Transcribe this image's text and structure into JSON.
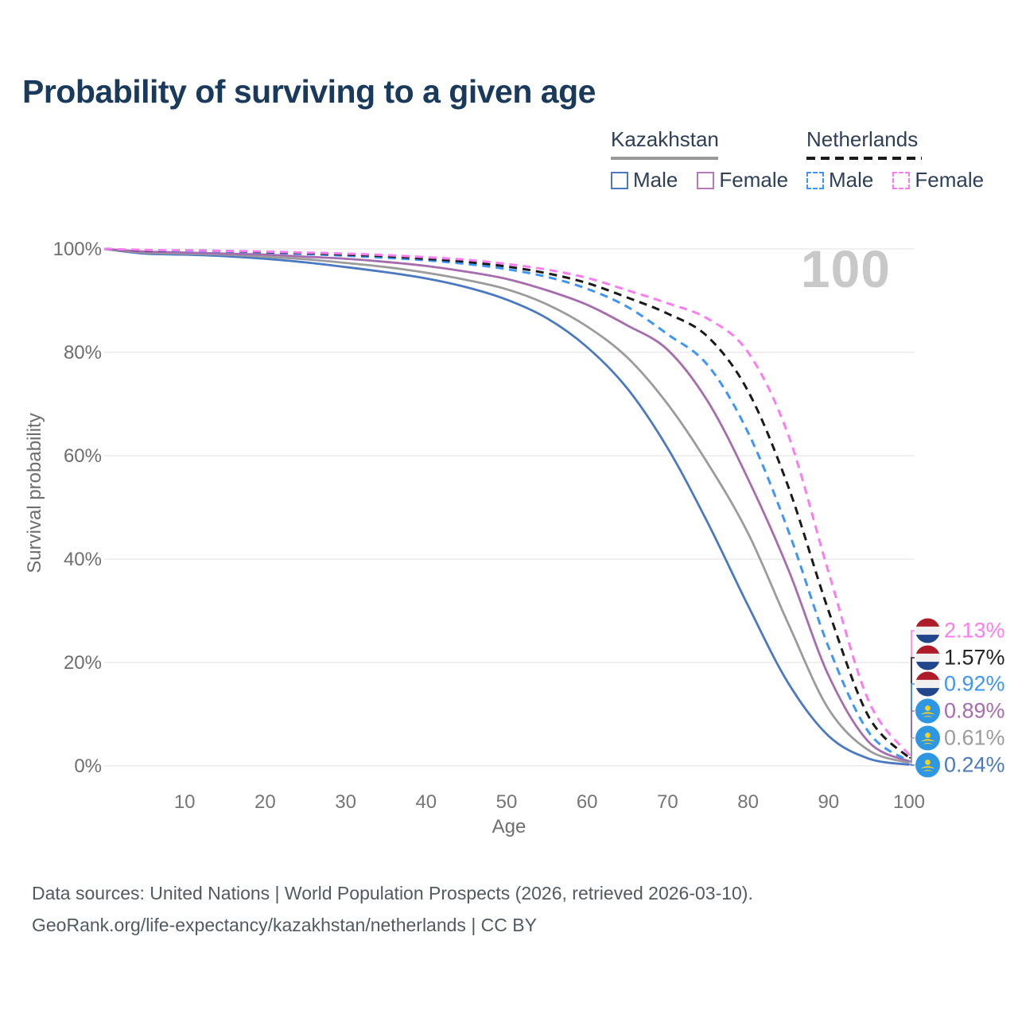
{
  "header": {
    "title": "Probability of surviving to a given age"
  },
  "watermark": {
    "text": "100"
  },
  "legend": {
    "groups": [
      {
        "id": "kazakhstan",
        "label": "Kazakhstan",
        "underline_style": "solid",
        "underline_color": "#9a9a9a",
        "items": [
          {
            "id": "kz-male",
            "label": "Male",
            "color": "#4a79c2",
            "dash": false
          },
          {
            "id": "kz-female",
            "label": "Female",
            "color": "#b77ab8",
            "dash": false
          }
        ]
      },
      {
        "id": "netherlands",
        "label": "Netherlands",
        "underline_style": "dashed",
        "underline_color": "#1a1a1a",
        "items": [
          {
            "id": "nl-male",
            "label": "Male",
            "color": "#3d96f7",
            "dash": true
          },
          {
            "id": "nl-female",
            "label": "Female",
            "color": "#fb7cf0",
            "dash": true
          }
        ]
      }
    ]
  },
  "axes": {
    "x_title": "Age",
    "y_title": "Survival probability",
    "x_ticks": [
      "10",
      "20",
      "30",
      "40",
      "50",
      "60",
      "70",
      "80",
      "90",
      "100"
    ],
    "y_ticks": [
      "0%",
      "20%",
      "40%",
      "60%",
      "80%",
      "100%"
    ]
  },
  "footer": {
    "line1": "Data sources: United Nations | World Population Prospects (2026, retrieved 2026-03-10).",
    "line2": "GeoRank.org/life-expectancy/kazakhstan/netherlands | CC BY"
  },
  "chart_data": {
    "type": "line",
    "title": "Probability of surviving to a given age",
    "xlabel": "Age",
    "ylabel": "Survival probability",
    "xlim": [
      0,
      100
    ],
    "ylim": [
      0,
      100
    ],
    "grid": "horizontal",
    "hover_age": 100,
    "ages": [
      0,
      5,
      10,
      15,
      20,
      25,
      30,
      35,
      40,
      45,
      50,
      55,
      60,
      65,
      70,
      75,
      80,
      85,
      90,
      95,
      100
    ],
    "series": [
      {
        "id": "kz-male",
        "name": "Kazakhstan Male",
        "country": "Kazakhstan",
        "sex": "Male",
        "color": "#4a79c2",
        "dash": "solid",
        "values": [
          100,
          99.1,
          98.9,
          98.6,
          98.1,
          97.4,
          96.5,
          95.5,
          94.3,
          92.6,
          90.2,
          86.6,
          81.0,
          73.0,
          61.5,
          47.0,
          31.0,
          16.0,
          5.8,
          1.4,
          0.24
        ],
        "end_label": "0.24%"
      },
      {
        "id": "kz-total",
        "name": "Kazakhstan Total",
        "country": "Kazakhstan",
        "sex": "Both",
        "color": "#9b9b9b",
        "dash": "solid",
        "values": [
          100,
          99.3,
          99.1,
          98.9,
          98.5,
          98.0,
          97.3,
          96.5,
          95.4,
          94.0,
          92.2,
          89.3,
          85.0,
          79.0,
          70.0,
          58.5,
          45.0,
          27.5,
          11.0,
          3.0,
          0.61
        ],
        "end_label": "0.61%"
      },
      {
        "id": "kz-female",
        "name": "Kazakhstan Female",
        "country": "Kazakhstan",
        "sex": "Female",
        "color": "#a76cae",
        "dash": "solid",
        "values": [
          100,
          99.5,
          99.3,
          99.1,
          98.9,
          98.5,
          98.1,
          97.5,
          96.7,
          95.6,
          94.2,
          92.0,
          89.2,
          85.2,
          80.5,
          70.5,
          55.5,
          38.0,
          17.5,
          4.6,
          0.89
        ],
        "end_label": "0.89%"
      },
      {
        "id": "nl-male",
        "name": "Netherlands Male",
        "country": "Netherlands",
        "sex": "Male",
        "color": "#3d96f7",
        "dash": "dashed",
        "values": [
          100,
          99.7,
          99.6,
          99.5,
          99.3,
          99.0,
          98.7,
          98.3,
          97.8,
          97.1,
          96.1,
          94.6,
          92.3,
          88.8,
          83.5,
          77.5,
          64.5,
          45.5,
          23.0,
          6.5,
          0.92
        ],
        "end_label": "0.92%"
      },
      {
        "id": "nl-total",
        "name": "Netherlands Total",
        "country": "Netherlands",
        "sex": "Both",
        "color": "#1a1a1a",
        "dash": "dashed",
        "values": [
          100,
          99.7,
          99.7,
          99.6,
          99.4,
          99.2,
          98.9,
          98.6,
          98.1,
          97.5,
          96.6,
          95.3,
          93.4,
          90.6,
          87.5,
          83.0,
          72.5,
          54.0,
          30.0,
          9.5,
          1.57
        ],
        "end_label": "1.57%"
      },
      {
        "id": "nl-female",
        "name": "Netherlands Female",
        "country": "Netherlands",
        "sex": "Female",
        "color": "#fb7cf0",
        "dash": "dashed",
        "values": [
          100,
          99.8,
          99.7,
          99.6,
          99.5,
          99.3,
          99.1,
          98.8,
          98.4,
          97.9,
          97.1,
          96.0,
          94.4,
          92.0,
          89.5,
          86.5,
          80.0,
          64.0,
          37.5,
          12.5,
          2.13
        ],
        "end_label": "2.13%"
      }
    ],
    "end_labels": [
      {
        "series": "nl-female",
        "value": "2.13%",
        "flag": "netherlands",
        "color": "#fb7cf0"
      },
      {
        "series": "nl-total",
        "value": "1.57%",
        "flag": "netherlands",
        "color": "#222222"
      },
      {
        "series": "nl-male",
        "value": "0.92%",
        "flag": "netherlands",
        "color": "#3d96f7"
      },
      {
        "series": "kz-female",
        "value": "0.89%",
        "flag": "kazakhstan",
        "color": "#a76cae"
      },
      {
        "series": "kz-total",
        "value": "0.61%",
        "flag": "kazakhstan",
        "color": "#9b9b9b"
      },
      {
        "series": "kz-male",
        "value": "0.24%",
        "flag": "kazakhstan",
        "color": "#4a79c2"
      }
    ]
  }
}
